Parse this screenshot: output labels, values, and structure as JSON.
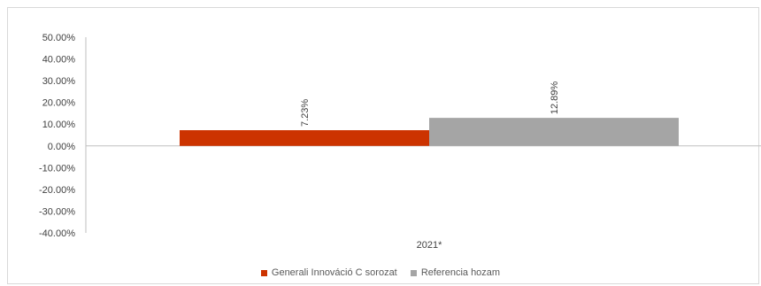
{
  "chart_data": {
    "type": "bar",
    "categories": [
      "2021*"
    ],
    "series": [
      {
        "name": "Generali Innováció C sorozat",
        "values": [
          7.23
        ],
        "label": "7.23%",
        "color": "#cc3300"
      },
      {
        "name": "Referencia hozam",
        "values": [
          12.89
        ],
        "label": "12.89%",
        "color": "#a5a5a5"
      }
    ],
    "ylim": [
      -40,
      50
    ],
    "yticks": [
      50,
      40,
      30,
      20,
      10,
      0,
      -10,
      -20,
      -30,
      -40
    ],
    "ytick_labels": [
      "50.00%",
      "40.00%",
      "30.00%",
      "20.00%",
      "10.00%",
      "0.00%",
      "-10.00%",
      "-20.00%",
      "-30.00%",
      "-40.00%"
    ],
    "title": "",
    "xlabel": "",
    "ylabel": "",
    "grid": false,
    "legend_position": "bottom"
  }
}
